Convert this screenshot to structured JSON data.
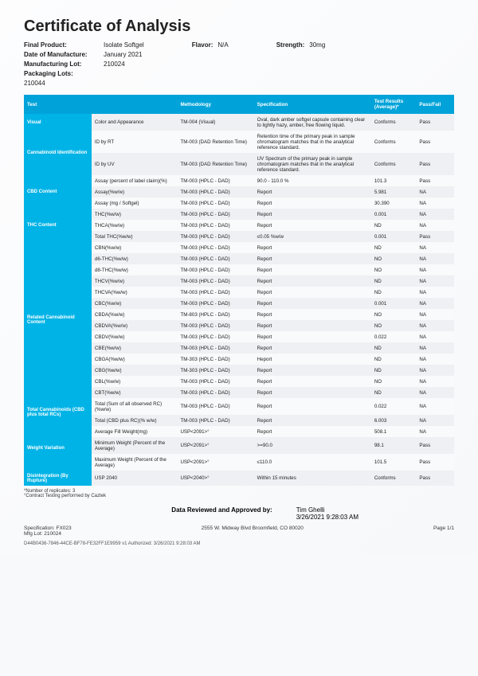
{
  "title": "Certificate of Analysis",
  "meta": {
    "final_product_label": "Final Product:",
    "final_product": "Isolate Softgel",
    "dom_label": "Date of Manufacture:",
    "dom": "January 2021",
    "mlot_label": "Manufacturing Lot:",
    "mlot": "210024",
    "plot_label": "Packaging Lots:",
    "plot": "210044",
    "flavor_label": "Flavor:",
    "flavor": "N/A",
    "strength_label": "Strength:",
    "strength": "30mg"
  },
  "headers": [
    "Test",
    "",
    "Methodology",
    "Specification",
    "Test Results (Average)*",
    "Pass/Fail"
  ],
  "groups": [
    {
      "cat": "Visual",
      "rows": [
        {
          "n": "Color and Appearance",
          "m": "TM-004 (Visual)",
          "s": "Oval, dark amber softgel capsule containing clear to lightly hazy, amber, free flowing liquid.",
          "r": "Conforms",
          "p": "Pass"
        }
      ]
    },
    {
      "cat": "Cannabinoid Identification",
      "rows": [
        {
          "n": "ID by RT",
          "m": "TM-003 (DAD Retention Time)",
          "s": "Retention time of the primary peak in sample chromatogram matches that in the analytical reference standard.",
          "r": "Conforms",
          "p": "Pass"
        },
        {
          "n": "ID by UV",
          "m": "TM-003 (DAD Retention Time)",
          "s": "UV Spectrum of the primary peak in sample chromatogram matches that in the analytical reference standard.",
          "r": "Conforms",
          "p": "Pass"
        }
      ]
    },
    {
      "cat": "CBD Content",
      "rows": [
        {
          "n": "Assay (percent of label claim)(%)",
          "m": "TM-003 (HPLC - DAD)",
          "s": "90.0 - 110.0 %",
          "r": "101.3",
          "p": "Pass"
        },
        {
          "n": "Assay(%w/w)",
          "m": "TM-003 (HPLC - DAD)",
          "s": "Report",
          "r": "5.981",
          "p": "NA"
        },
        {
          "n": "Assay (mg / Softgel)",
          "m": "TM-003 (HPLC - DAD)",
          "s": "Report",
          "r": "30.390",
          "p": "NA"
        }
      ]
    },
    {
      "cat": "THC Content",
      "rows": [
        {
          "n": "THC(%w/w)",
          "m": "TM-003 (HPLC - DAD)",
          "s": "Report",
          "r": "0.001",
          "p": "NA"
        },
        {
          "n": "THCA(%w/w)",
          "m": "TM-003 (HPLC - DAD)",
          "s": "Report",
          "r": "ND",
          "p": "NA"
        },
        {
          "n": "Total THC(%w/w)",
          "m": "TM-003 (HPLC - DAD)",
          "s": "≤0.05 %w/w",
          "r": "0.001",
          "p": "Pass"
        }
      ]
    },
    {
      "cat": "Related Cannabinoid Content",
      "rows": [
        {
          "n": "CBN(%w/w)",
          "m": "TM-003 (HPLC - DAD)",
          "s": "Report",
          "r": "ND",
          "p": "NA"
        },
        {
          "n": "d6-THC(%w/w)",
          "m": "TM-003 (HPLC - DAD)",
          "s": "Report",
          "r": "NO",
          "p": "NA"
        },
        {
          "n": "d8-THC(%w/w)",
          "m": "TM-003 (HPLC - DAD)",
          "s": "Report",
          "r": "NO",
          "p": "NA"
        },
        {
          "n": "THCV(%w/w)",
          "m": "TM-003 (HPLC - DAD)",
          "s": "Report",
          "r": "ND",
          "p": "NA"
        },
        {
          "n": "THCVA(%w/w)",
          "m": "TM-003 (HPLC - DAD)",
          "s": "Report",
          "r": "ND",
          "p": "NA"
        },
        {
          "n": "CBC(%w/w)",
          "m": "TM-003 (HPLC - DAD)",
          "s": "Report",
          "r": "0.001",
          "p": "NA"
        },
        {
          "n": "CBDA(%w/w)",
          "m": "TM-803 (HPLC - DAD)",
          "s": "Report",
          "r": "NO",
          "p": "NA"
        },
        {
          "n": "CBDVA(%w/w)",
          "m": "TM-003 (HPLC - DAD)",
          "s": "Report",
          "r": "NO",
          "p": "NA"
        },
        {
          "n": "CBDV(%w/w)",
          "m": "TM-003 (HPLC - DAD)",
          "s": "Report",
          "r": "0.022",
          "p": "NA"
        },
        {
          "n": "CBE(%w/w)",
          "m": "TM-003 (HPLC - DAD)",
          "s": "Report",
          "r": "ND",
          "p": "NA"
        },
        {
          "n": "CBGA(%w/w)",
          "m": "TM-303 (HPLC - DAD)",
          "s": "Heport",
          "r": "ND",
          "p": "NA"
        },
        {
          "n": "CBG(%w/w)",
          "m": "TM-303 (HPLC - DAD)",
          "s": "Report",
          "r": "ND",
          "p": "NA"
        },
        {
          "n": "CBL(%w/w)",
          "m": "TM-003 (HPLC - DAD)",
          "s": "Report",
          "r": "NO",
          "p": "NA"
        },
        {
          "n": "CBT(%w/w)",
          "m": "TM-003 (HPLC - DAD)",
          "s": "Report",
          "r": "ND",
          "p": "NA"
        }
      ]
    },
    {
      "cat": "Total Cannabinoids (CBD plus total RCs)",
      "rows": [
        {
          "n": "Total (Sum of all observed RC)(%w/w)",
          "m": "TM-003 (HPLC - DAD)",
          "s": "Report",
          "r": "0.022",
          "p": "NA"
        },
        {
          "n": "Total (CBD plus RC)(% w/w)",
          "m": "TM-003 (HPLC - DAD)",
          "s": "Report",
          "r": "6.003",
          "p": "NA"
        }
      ]
    },
    {
      "cat": "Weight Variation",
      "rows": [
        {
          "n": "Average Fill Weight(mg)",
          "m": "USP<2091>°",
          "s": "Report",
          "r": "508.1",
          "p": "NA"
        },
        {
          "n": "Minimum Weight (Percent of the Average)",
          "m": "USP<2091>°",
          "s": ">=90.0",
          "r": "98.1",
          "p": "Pass"
        },
        {
          "n": "Maximum Weight (Percent of the Average)",
          "m": "USP<2091>°",
          "s": "≤110.0",
          "r": "101.5",
          "p": "Pass"
        }
      ]
    },
    {
      "cat": "Disintegration (By Rupture)",
      "rows": [
        {
          "n": "USP 2040",
          "m": "USP<2040>°",
          "s": "Within 15 minutes",
          "r": "Conforms",
          "p": "Pass"
        }
      ]
    }
  ],
  "footnotes": {
    "a": "*Number of replicates: 3",
    "b": "°Contract Testing performed by Caztek"
  },
  "approval": {
    "label": "Data Reviewed and Approved by:",
    "name": "Tim Ghelli",
    "date": "3/26/2021 9:28:03 AM"
  },
  "footer": {
    "spec_label": "Specification:",
    "spec": "FX023",
    "mfg_label": "Mfg Lot:",
    "mfg": "210024",
    "addr": "2555 W. Midway Blvd Broomfield, CO 80020",
    "page": "Page  1/1"
  },
  "docid": "D44B0436-7846-44CE-BF78-FE32FF1E9959     v1     Authorized:   3/26/2021 9:28:03 AM"
}
